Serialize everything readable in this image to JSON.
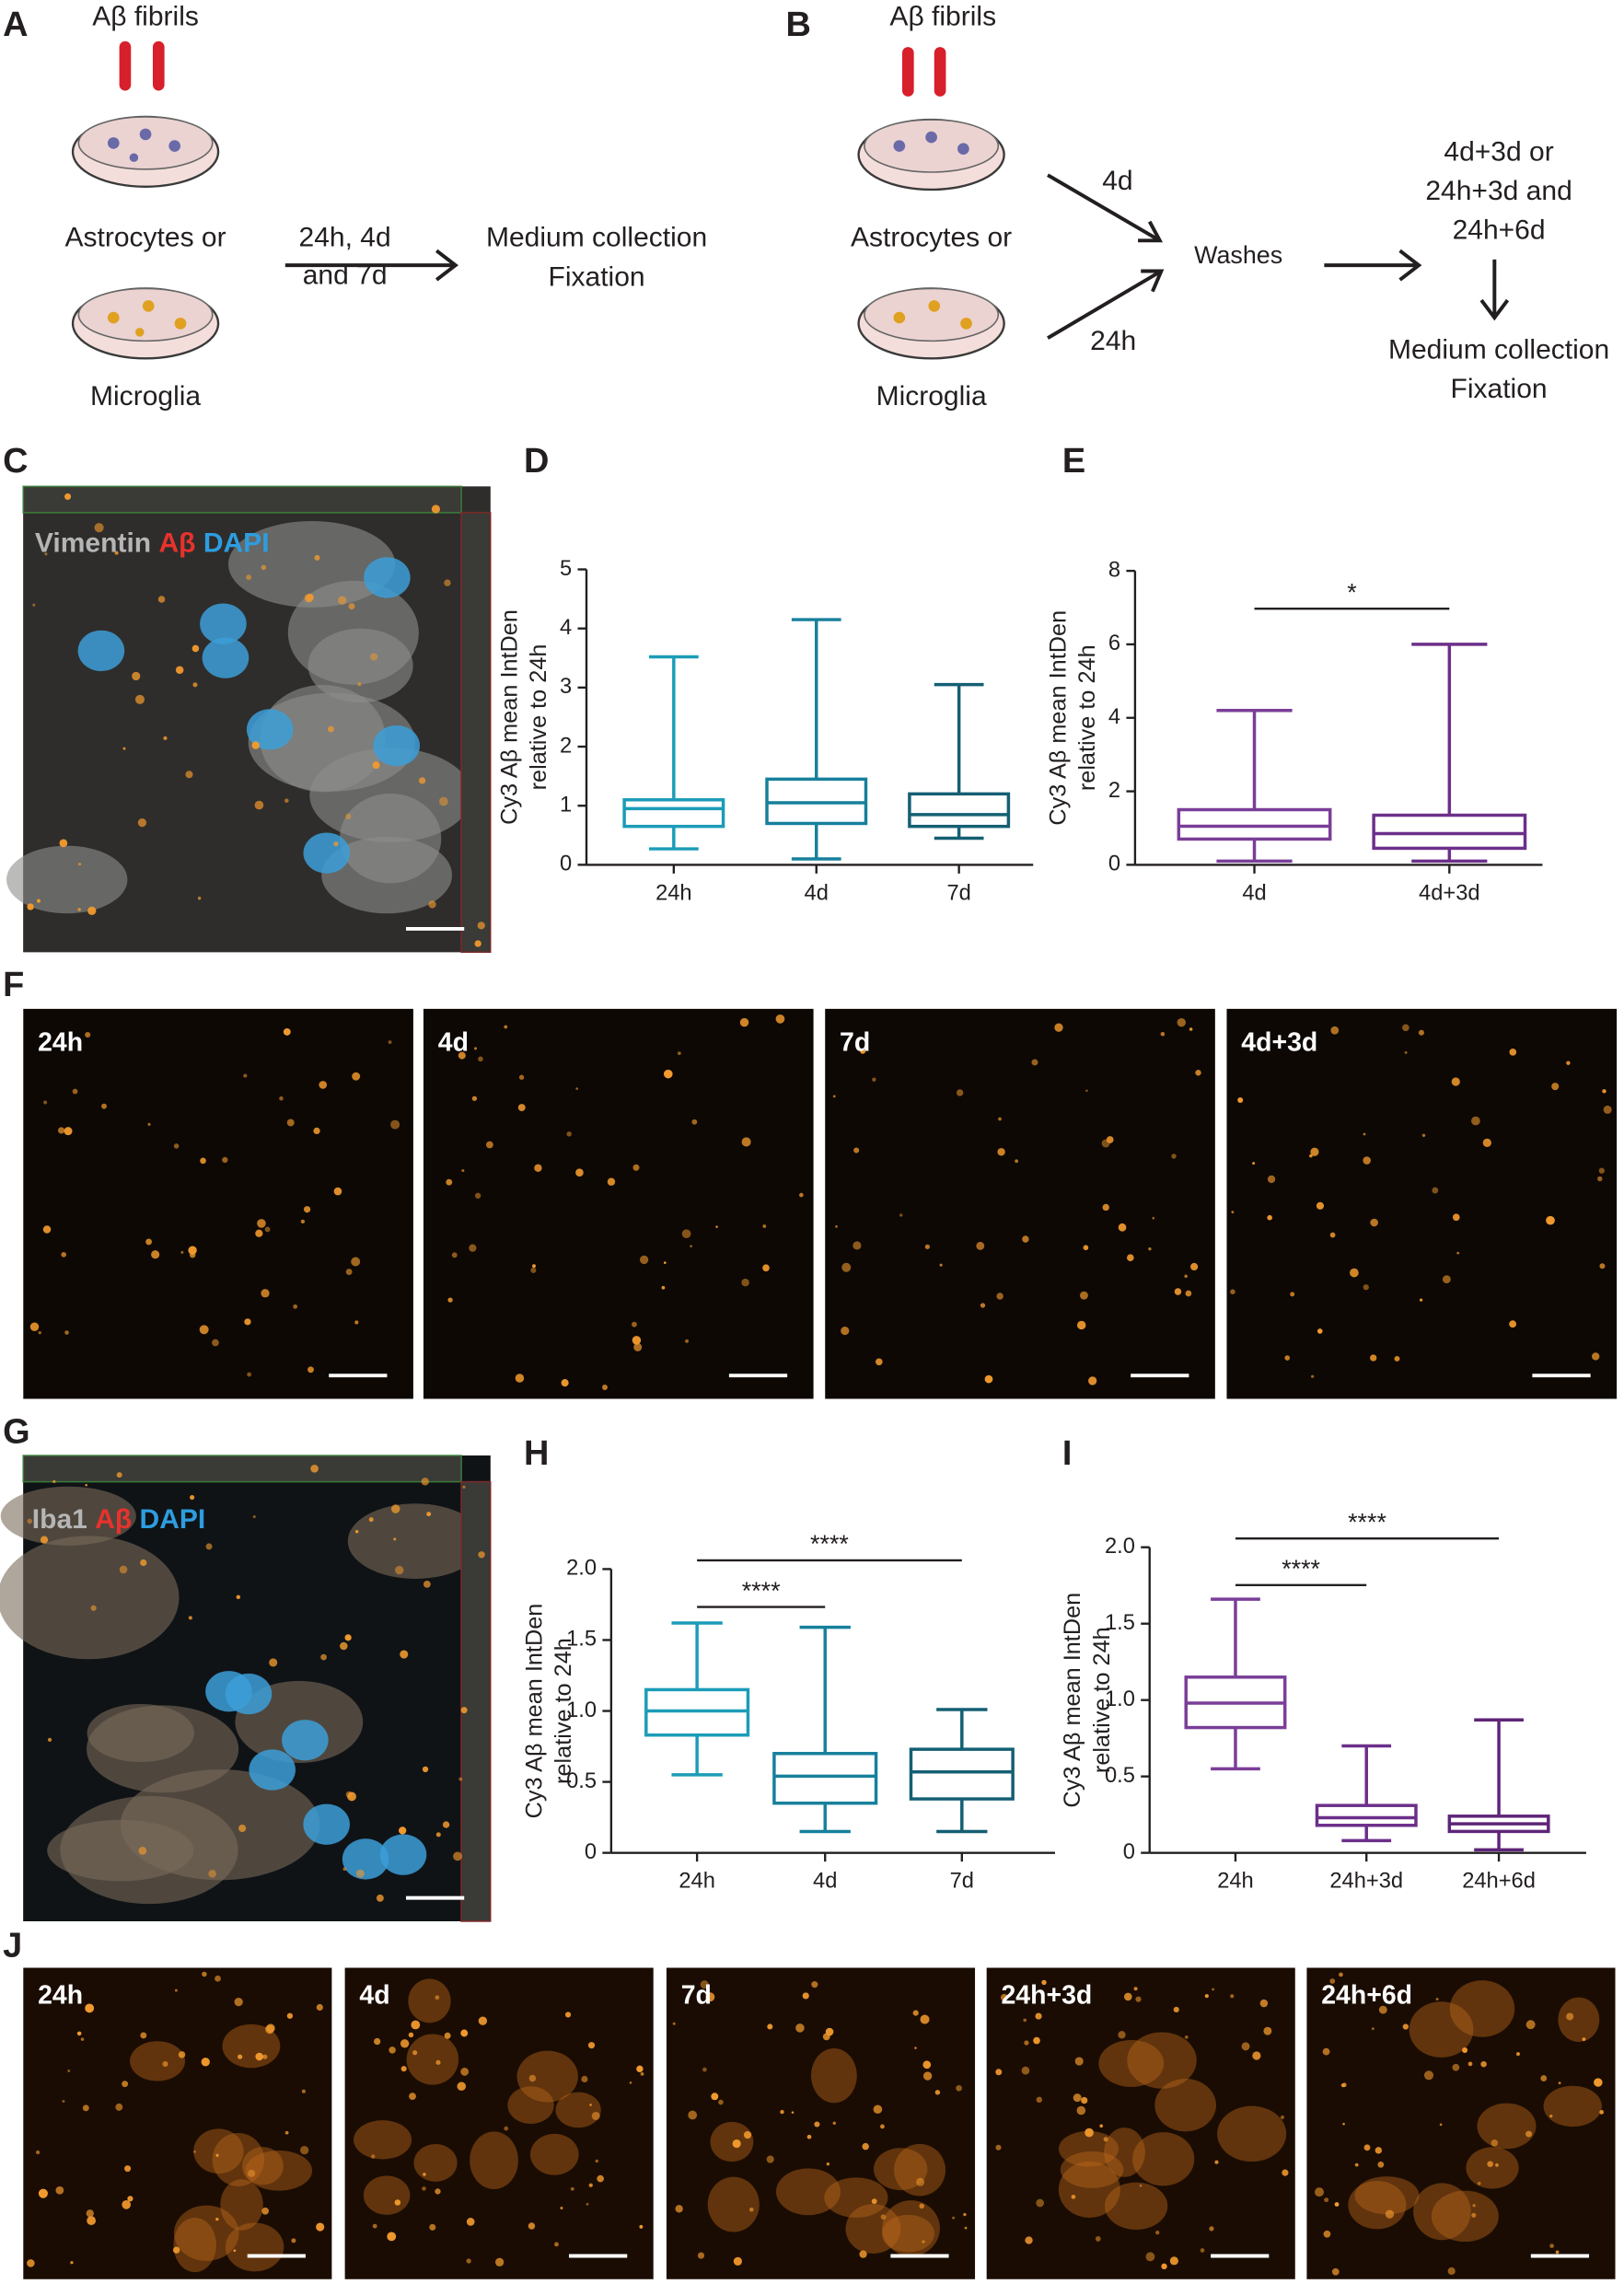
{
  "panel_letters": [
    "A",
    "B",
    "C",
    "D",
    "E",
    "F",
    "G",
    "H",
    "I",
    "J"
  ],
  "panel_a": {
    "fibrils": "Aβ fibrils",
    "cells": [
      "Astrocytes or",
      "Microglia"
    ],
    "arrow_label": [
      "24h, 4d",
      "and 7d"
    ],
    "outcome": [
      "Medium collection",
      "Fixation"
    ]
  },
  "panel_b": {
    "fibrils": "Aβ fibrils",
    "cells": [
      "Astrocytes or",
      "Microglia"
    ],
    "arrow_labels": [
      "4d",
      "24h"
    ],
    "step": "Washes",
    "timepoints": [
      "4d+3d or",
      "24h+3d and",
      "24h+6d"
    ],
    "outcome": [
      "Medium collection",
      "Fixation"
    ]
  },
  "panel_c": {
    "stain": [
      "Vimentin",
      "Aβ",
      "DAPI"
    ]
  },
  "panel_f": {
    "labels": [
      "24h",
      "4d",
      "7d",
      "4d+3d"
    ]
  },
  "panel_g": {
    "stain": [
      "Iba1",
      "Aβ",
      "DAPI"
    ]
  },
  "panel_j": {
    "labels": [
      "24h",
      "4d",
      "7d",
      "24h+3d",
      "24h+6d"
    ]
  },
  "chart_data": [
    {
      "type": "box",
      "categories": [
        "24h",
        "4d",
        "7d"
      ],
      "colors": [
        "#1b9cb8",
        "#17809c",
        "#145f73"
      ],
      "min": [
        0.27,
        0.1,
        0.45
      ],
      "q1": [
        0.65,
        0.7,
        0.65
      ],
      "median": [
        0.95,
        1.05,
        0.85
      ],
      "q3": [
        1.1,
        1.45,
        1.2
      ],
      "max": [
        3.52,
        4.15,
        3.05
      ],
      "ylim": [
        0,
        5
      ],
      "yticks": [
        0,
        1,
        2,
        3,
        4,
        5
      ],
      "ylabel": [
        "Cy3 Aβ mean IntDen",
        "relative to 24h"
      ],
      "comparisons": []
    },
    {
      "type": "box",
      "categories": [
        "4d",
        "4d+3d"
      ],
      "colors": [
        "#7a3e98",
        "#6c2f8a"
      ],
      "min": [
        0.1,
        0.1
      ],
      "q1": [
        0.7,
        0.45
      ],
      "median": [
        1.05,
        0.85
      ],
      "q3": [
        1.5,
        1.35
      ],
      "max": [
        4.2,
        6.0
      ],
      "ylim": [
        0,
        8
      ],
      "yticks": [
        0,
        2,
        4,
        6,
        8
      ],
      "ylabel": [
        "Cy3 Aβ mean IntDen",
        "relative to 24h"
      ],
      "comparisons": [
        {
          "label": "*",
          "between": [
            "4d",
            "4d+3d"
          ]
        }
      ]
    },
    {
      "type": "box",
      "categories": [
        "24h",
        "4d",
        "7d"
      ],
      "colors": [
        "#1b9cb8",
        "#17809c",
        "#145f73"
      ],
      "min": [
        0.55,
        0.15,
        0.15
      ],
      "q1": [
        0.83,
        0.35,
        0.38
      ],
      "median": [
        1.0,
        0.54,
        0.57
      ],
      "q3": [
        1.15,
        0.7,
        0.73
      ],
      "max": [
        1.62,
        1.59,
        1.01
      ],
      "ylim": [
        0,
        2
      ],
      "yticks": [
        0,
        0.5,
        {
          "value": 1,
          "label": "1.0"
        },
        1.5,
        {
          "value": 2,
          "label": "2.0"
        }
      ],
      "ylabel": [
        "Cy3 Aβ mean IntDen",
        "relative to 24h"
      ],
      "comparisons": [
        {
          "label": "****",
          "between": [
            "24h",
            "4d"
          ]
        },
        {
          "label": "****",
          "between": [
            "24h",
            "7d"
          ]
        }
      ]
    },
    {
      "type": "box",
      "categories": [
        "24h",
        "24h+3d",
        "24h+6d"
      ],
      "colors": [
        "#7a3e98",
        "#6c2f8a",
        "#5e2578"
      ],
      "min": [
        0.55,
        0.08,
        0.02
      ],
      "q1": [
        0.82,
        0.18,
        0.14
      ],
      "median": [
        0.98,
        0.23,
        0.19
      ],
      "q3": [
        1.15,
        0.31,
        0.24
      ],
      "max": [
        1.66,
        0.7,
        0.87
      ],
      "ylim": [
        0,
        2
      ],
      "yticks": [
        0,
        0.5,
        {
          "value": 1,
          "label": "1.0"
        },
        1.5,
        {
          "value": 2,
          "label": "2.0"
        }
      ],
      "ylabel": [
        "Cy3 Aβ mean IntDen",
        "relative to 24h"
      ],
      "comparisons": [
        {
          "label": "****",
          "between": [
            "24h",
            "24h+3d"
          ]
        },
        {
          "label": "****",
          "between": [
            "24h",
            "24h+6d"
          ]
        }
      ]
    }
  ]
}
